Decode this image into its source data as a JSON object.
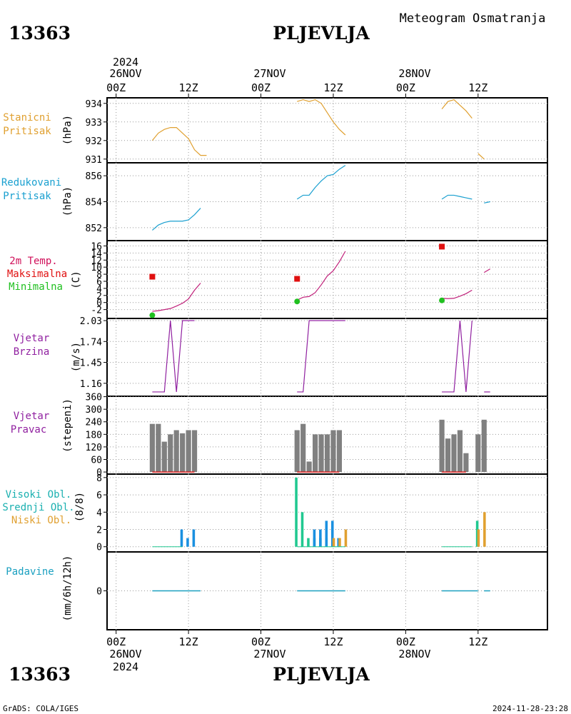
{
  "header": {
    "station_id": "13363",
    "station_name": "PLJEVLJA",
    "meteogram_title": "Meteogram Osmatranja"
  },
  "footer": {
    "station_id": "13363",
    "station_name": "PLJEVLJA",
    "credit": "GrADS: COLA/IGES",
    "timestamp": "2024-11-28-23:28"
  },
  "time_axis": {
    "top_year": "2024",
    "bottom_year": "2024",
    "days": [
      "26NOV",
      "27NOV",
      "28NOV"
    ],
    "hour_labels": [
      "00Z",
      "12Z",
      "00Z",
      "12Z",
      "00Z",
      "12Z"
    ],
    "hour_values": [
      0,
      12,
      24,
      36,
      48,
      60
    ],
    "range_hours": [
      -1.5,
      71.5
    ]
  },
  "panels": {
    "pressure": {
      "label1": "Stanicni",
      "label2": "Pritisak",
      "unit": "(hPa)",
      "ticks": [
        "931",
        "932",
        "933",
        "934"
      ]
    },
    "reduced": {
      "label1": "Redukovani",
      "label2": "Pritisak",
      "unit": "(hPa)",
      "ticks": [
        "852",
        "854",
        "856"
      ]
    },
    "temp": {
      "label1": "2m Temp.",
      "label2": "Maksimalna",
      "label3": "Minimalna",
      "unit": "(C)",
      "ticks": [
        "-2",
        "0",
        "2",
        "4",
        "6",
        "8",
        "10",
        "12",
        "14",
        "16"
      ]
    },
    "wind_speed": {
      "label1": "Vjetar",
      "label2": "Brzina",
      "unit": "(m/s)",
      "ticks": [
        "1.16",
        "1.45",
        "1.74",
        "2.03"
      ]
    },
    "wind_dir": {
      "label1": "Vjetar",
      "label2": "Pravac",
      "unit": "(stepeni)",
      "ticks": [
        "0",
        "60",
        "120",
        "180",
        "240",
        "300",
        "360"
      ]
    },
    "clouds": {
      "label1": "Visoki Obl.",
      "label2": "Srednji Obl.",
      "label3": "Niski Obl.",
      "unit": "(8/8)",
      "ticks": [
        "0",
        "2",
        "4",
        "6",
        "8"
      ]
    },
    "precip": {
      "label1": "Padavine",
      "unit": "(mm/6h/12h)",
      "ticks": [
        "0"
      ]
    }
  },
  "colors": {
    "pressure": "#e0a030",
    "reduced": "#1aa0d0",
    "temp_label": "#d0105a",
    "temp_line": "#c0207a",
    "max": "#e01010",
    "min": "#20c020",
    "wind": "#9020a0",
    "dir_bar": "#808080",
    "dir_base": "#e02020",
    "cloud_high": "#20c890",
    "cloud_mid": "#1a90e0",
    "cloud_low": "#e0a030",
    "precip": "#1aa0c0"
  },
  "chart_data": {
    "type": "line",
    "x_unit": "hours since 26NOV 00Z",
    "station_pressure": {
      "ylim": [
        930.8,
        934.3
      ],
      "segments": [
        [
          [
            6,
            932.0
          ],
          [
            7,
            932.4
          ],
          [
            8,
            932.6
          ],
          [
            9,
            932.7
          ],
          [
            10,
            932.7
          ],
          [
            11,
            932.4
          ],
          [
            12,
            932.1
          ],
          [
            13,
            931.5
          ],
          [
            14,
            931.2
          ],
          [
            15,
            931.2
          ]
        ],
        [
          [
            30,
            934.1
          ],
          [
            31,
            934.2
          ],
          [
            32,
            934.1
          ],
          [
            33,
            934.2
          ],
          [
            34,
            934.0
          ],
          [
            35,
            933.5
          ],
          [
            36,
            933.0
          ],
          [
            37,
            932.6
          ],
          [
            38,
            932.3
          ]
        ],
        [
          [
            54,
            933.7
          ],
          [
            55,
            934.1
          ],
          [
            56,
            934.2
          ],
          [
            57,
            933.9
          ],
          [
            58,
            933.6
          ],
          [
            59,
            933.2
          ]
        ],
        [
          [
            60,
            931.3
          ],
          [
            61,
            931.0
          ]
        ]
      ]
    },
    "reduced_pressure": {
      "ylim": [
        851.0,
        857.0
      ],
      "segments": [
        [
          [
            6,
            851.8
          ],
          [
            7,
            852.2
          ],
          [
            8,
            852.4
          ],
          [
            9,
            852.5
          ],
          [
            10,
            852.5
          ],
          [
            11,
            852.5
          ],
          [
            12,
            852.6
          ],
          [
            13,
            853.0
          ],
          [
            14,
            853.5
          ]
        ],
        [
          [
            30,
            854.2
          ],
          [
            31,
            854.5
          ],
          [
            32,
            854.5
          ],
          [
            33,
            855.1
          ],
          [
            34,
            855.6
          ],
          [
            35,
            856.0
          ],
          [
            36,
            856.1
          ],
          [
            37,
            856.5
          ],
          [
            38,
            856.8
          ]
        ],
        [
          [
            54,
            854.2
          ],
          [
            55,
            854.5
          ],
          [
            56,
            854.5
          ],
          [
            57,
            854.4
          ],
          [
            58,
            854.3
          ],
          [
            59,
            854.2
          ]
        ],
        [
          [
            61,
            853.9
          ],
          [
            62,
            854.0
          ]
        ]
      ]
    },
    "temperature": {
      "ylim": [
        -4.5,
        17.5
      ],
      "segments": [
        [
          [
            6,
            -2.5
          ],
          [
            7,
            -2.3
          ],
          [
            8,
            -2.0
          ],
          [
            9,
            -1.7
          ],
          [
            10,
            -1.0
          ],
          [
            11,
            -0.2
          ],
          [
            12,
            1.0
          ],
          [
            13,
            3.5
          ],
          [
            14,
            5.5
          ]
        ],
        [
          [
            30,
            0.7
          ],
          [
            31,
            1.5
          ],
          [
            32,
            1.7
          ],
          [
            33,
            2.8
          ],
          [
            34,
            5.0
          ],
          [
            35,
            7.5
          ],
          [
            36,
            9.0
          ],
          [
            37,
            11.5
          ],
          [
            38,
            14.5
          ]
        ],
        [
          [
            54,
            1.2
          ],
          [
            55,
            1.1
          ],
          [
            56,
            1.2
          ],
          [
            57,
            1.8
          ],
          [
            58,
            2.5
          ],
          [
            59,
            3.5
          ]
        ],
        [
          [
            61,
            8.5
          ],
          [
            62,
            9.5
          ]
        ]
      ],
      "max_points": [
        [
          6,
          7.3
        ],
        [
          30,
          6.7
        ],
        [
          54,
          15.8
        ]
      ],
      "min_points": [
        [
          6,
          -3.6
        ],
        [
          30,
          0.3
        ],
        [
          54,
          0.6
        ]
      ]
    },
    "wind_speed": {
      "ylim": [
        0.98,
        2.06
      ],
      "segments": [
        [
          [
            6,
            1.04
          ],
          [
            8,
            1.04
          ],
          [
            9,
            2.03
          ],
          [
            10,
            1.04
          ],
          [
            11,
            2.03
          ],
          [
            13,
            2.03
          ]
        ],
        [
          [
            30,
            1.04
          ],
          [
            31,
            1.04
          ],
          [
            32,
            2.03
          ],
          [
            38,
            2.03
          ]
        ],
        [
          [
            54,
            1.04
          ],
          [
            56,
            1.04
          ],
          [
            57,
            2.03
          ],
          [
            58,
            1.04
          ],
          [
            59,
            2.03
          ]
        ],
        [
          [
            61,
            1.04
          ],
          [
            62,
            1.04
          ]
        ]
      ]
    },
    "wind_direction": {
      "ylim": [
        -10,
        362
      ],
      "bars": [
        [
          6,
          230
        ],
        [
          7,
          230
        ],
        [
          8,
          145
        ],
        [
          9,
          180
        ],
        [
          10,
          200
        ],
        [
          11,
          185
        ],
        [
          12,
          200
        ],
        [
          13,
          200
        ],
        [
          30,
          200
        ],
        [
          31,
          230
        ],
        [
          32,
          50
        ],
        [
          33,
          180
        ],
        [
          34,
          180
        ],
        [
          35,
          180
        ],
        [
          36,
          200
        ],
        [
          37,
          200
        ],
        [
          54,
          250
        ],
        [
          55,
          160
        ],
        [
          56,
          180
        ],
        [
          57,
          200
        ],
        [
          58,
          90
        ],
        [
          60,
          180
        ],
        [
          61,
          250
        ]
      ]
    },
    "clouds": {
      "ylim": [
        -0.6,
        8.4
      ],
      "high": [
        [
          30,
          8
        ],
        [
          31,
          4
        ],
        [
          32,
          1
        ],
        [
          33,
          1
        ],
        [
          34,
          1
        ],
        [
          35,
          1
        ],
        [
          36,
          1
        ],
        [
          60,
          3
        ],
        [
          61,
          0
        ]
      ],
      "mid": [
        [
          11,
          2
        ],
        [
          12,
          1
        ],
        [
          13,
          2
        ],
        [
          33,
          2
        ],
        [
          34,
          2
        ],
        [
          35,
          3
        ],
        [
          36,
          3
        ],
        [
          37,
          1
        ],
        [
          60,
          0
        ],
        [
          61,
          0
        ]
      ],
      "low": [
        [
          36,
          1
        ],
        [
          37,
          1
        ],
        [
          38,
          2
        ],
        [
          60,
          2
        ],
        [
          61,
          4
        ]
      ]
    },
    "precipitation": {
      "ylim": [
        -5,
        5
      ],
      "segments": [
        [
          6,
          14
        ],
        [
          30,
          38
        ],
        [
          54,
          60
        ],
        [
          61,
          62
        ]
      ]
    }
  }
}
